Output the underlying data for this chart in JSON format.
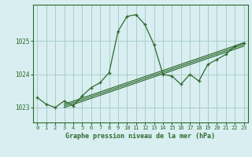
{
  "title": "Graphe pression niveau de la mer (hPa)",
  "bg_color": "#d8eef0",
  "grid_color": "#aacccc",
  "line_color": "#2d6a2d",
  "xlim": [
    -0.5,
    23.5
  ],
  "ylim": [
    1022.55,
    1026.1
  ],
  "yticks": [
    1023,
    1024,
    1025
  ],
  "xticks": [
    0,
    1,
    2,
    3,
    4,
    5,
    6,
    7,
    8,
    9,
    10,
    11,
    12,
    13,
    14,
    15,
    16,
    17,
    18,
    19,
    20,
    21,
    22,
    23
  ],
  "series1": {
    "x": [
      0,
      1,
      2,
      3,
      4,
      5,
      6,
      7,
      8,
      9,
      10,
      11,
      12,
      13,
      14,
      15,
      16,
      17,
      18,
      19,
      20,
      21,
      22,
      23
    ],
    "y": [
      1023.3,
      1023.1,
      1023.0,
      1023.2,
      1023.05,
      1023.35,
      1023.6,
      1023.75,
      1024.05,
      1025.3,
      1025.75,
      1025.8,
      1025.5,
      1024.9,
      1024.0,
      1023.95,
      1023.7,
      1024.0,
      1023.8,
      1024.3,
      1024.45,
      1024.6,
      1024.85,
      1024.95
    ]
  },
  "series2": {
    "x": [
      3,
      23
    ],
    "y": [
      1023.1,
      1024.95
    ]
  },
  "series3": {
    "x": [
      3,
      23
    ],
    "y": [
      1023.05,
      1024.9
    ]
  },
  "series4": {
    "x": [
      3,
      23
    ],
    "y": [
      1023.0,
      1024.85
    ]
  }
}
